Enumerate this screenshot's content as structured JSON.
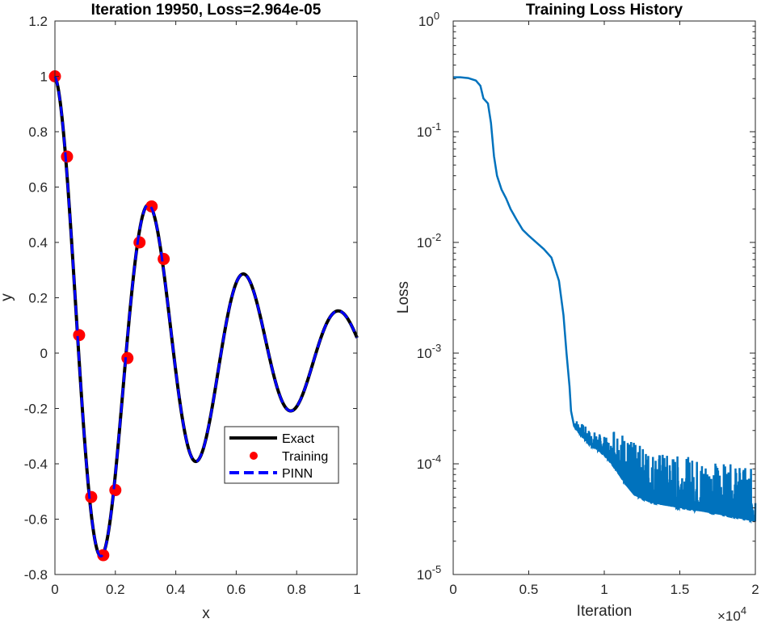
{
  "chart_data": [
    {
      "type": "line",
      "title": "Iteration 19950, Loss=2.964e-05",
      "xlabel": "x",
      "ylabel": "y",
      "xlim": [
        0,
        1
      ],
      "ylim": [
        -0.8,
        1.2
      ],
      "xticks": [
        0,
        0.2,
        0.4,
        0.6,
        0.8,
        1
      ],
      "xtick_labels": [
        "0",
        "0.2",
        "0.4",
        "0.6",
        "0.8",
        "1"
      ],
      "yticks": [
        -0.8,
        -0.6,
        -0.4,
        -0.2,
        0,
        0.2,
        0.4,
        0.6,
        0.8,
        1,
        1.2
      ],
      "ytick_labels": [
        "-0.8",
        "-0.6",
        "-0.4",
        "-0.2",
        "0",
        "0.2",
        "0.4",
        "0.6",
        "0.8",
        "1",
        "1.2"
      ],
      "legend": {
        "position": "lower-right",
        "entries": [
          "Exact",
          "Training",
          "PINN"
        ]
      },
      "series": [
        {
          "name": "Exact",
          "style": "solid",
          "color": "#000000",
          "function": "exp(-2x)·cos(20x)"
        },
        {
          "name": "Training",
          "style": "markers",
          "color": "#ff0000",
          "x": [
            0,
            0.04,
            0.08,
            0.12,
            0.16,
            0.2,
            0.24,
            0.28,
            0.32,
            0.36
          ],
          "y": [
            1.0,
            0.71,
            0.065,
            -0.52,
            -0.73,
            -0.495,
            -0.018,
            0.4,
            0.53,
            0.34
          ]
        },
        {
          "name": "PINN",
          "style": "dashed",
          "color": "#0000ff",
          "function": "exp(-2x)·cos(20x)"
        }
      ],
      "grid": false
    },
    {
      "type": "line",
      "title": "Training Loss History",
      "xlabel": "Iteration",
      "ylabel": "Loss",
      "xlim": [
        0,
        20000
      ],
      "ylim": [
        1e-05,
        1
      ],
      "yscale": "log",
      "xticks": [
        0,
        5000,
        10000,
        15000,
        20000
      ],
      "xtick_labels": [
        "0",
        "0.5",
        "1",
        "1.5",
        "2"
      ],
      "x_exponent_label": "×10",
      "x_exponent": "4",
      "yticks": [
        1e-05,
        0.0001,
        0.001,
        0.01,
        0.1,
        1
      ],
      "ytick_bases": [
        "10",
        "10",
        "10",
        "10",
        "10",
        "10"
      ],
      "ytick_exponents": [
        "-5",
        "-4",
        "-3",
        "-2",
        "-1",
        "0"
      ],
      "color": "#0072bd",
      "series": [
        {
          "name": "",
          "x": [
            0,
            500,
            1000,
            1500,
            1800,
            2000,
            2300,
            2500,
            2700,
            2900,
            3200,
            3500,
            3800,
            4200,
            4600,
            5000,
            5500,
            6000,
            6500,
            7000,
            7300,
            7500,
            7700,
            7800,
            8000,
            8200,
            8500,
            9000,
            9500,
            10000,
            10500,
            11000,
            11500,
            12000,
            13000,
            14000,
            15000,
            16000,
            17000,
            18000,
            19000,
            20000
          ],
          "y": [
            0.31,
            0.31,
            0.305,
            0.29,
            0.26,
            0.2,
            0.18,
            0.12,
            0.06,
            0.04,
            0.03,
            0.025,
            0.02,
            0.016,
            0.013,
            0.0115,
            0.01,
            0.0087,
            0.0073,
            0.0045,
            0.0022,
            0.001,
            0.0005,
            0.0003,
            0.00022,
            0.0002,
            0.00018,
            0.00015,
            0.000135,
            0.00012,
            0.0001,
            8e-05,
            6.3e-05,
            5.2e-05,
            4.5e-05,
            4.2e-05,
            4e-05,
            3.8e-05,
            3.6e-05,
            3.4e-05,
            3.2e-05,
            3e-05
          ]
        },
        {
          "name": "",
          "noise_band_x_range": [
            8000,
            20000
          ]
        }
      ],
      "grid": false
    }
  ]
}
